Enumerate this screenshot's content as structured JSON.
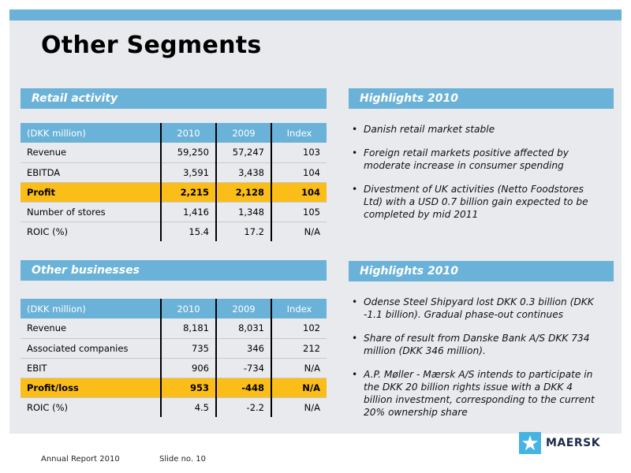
{
  "title": "Other Segments",
  "retail": {
    "header": "Retail activity",
    "table": {
      "columns": [
        "(DKK million)",
        "2010",
        "2009",
        "Index"
      ],
      "rows": [
        [
          "Revenue",
          "59,250",
          "57,247",
          "103"
        ],
        [
          "EBITDA",
          "3,591",
          "3,438",
          "104"
        ],
        [
          "Profit",
          "2,215",
          "2,128",
          "104"
        ],
        [
          "Number of stores",
          "1,416",
          "1,348",
          "105"
        ],
        [
          "ROIC (%)",
          "15.4",
          "17.2",
          "N/A"
        ]
      ]
    }
  },
  "retail_highlights": {
    "header": "Highlights 2010",
    "items": [
      "Danish retail market stable",
      "Foreign retail markets positive affected by moderate increase in consumer spending",
      "Divestment of UK activities (Netto Foodstores Ltd) with a USD 0.7 billion gain expected to be completed by mid 2011"
    ]
  },
  "other": {
    "header": "Other businesses",
    "table": {
      "columns": [
        "(DKK million)",
        "2010",
        "2009",
        "Index"
      ],
      "rows": [
        [
          "Revenue",
          "8,181",
          "8,031",
          "102"
        ],
        [
          "Associated companies",
          "735",
          "346",
          "212"
        ],
        [
          "EBIT",
          "906",
          "-734",
          "N/A"
        ],
        [
          "Profit/loss",
          "953",
          "-448",
          "N/A"
        ],
        [
          "ROIC (%)",
          "4.5",
          "-2.2",
          "N/A"
        ]
      ]
    }
  },
  "other_highlights": {
    "header": "Highlights 2010",
    "items": [
      "Odense Steel Shipyard lost DKK 0.3 billion (DKK -1.1 billion). Gradual phase-out continues",
      "Share of result from Danske Bank A/S DKK 734 million (DKK 346 million).",
      "A.P. Møller - Mærsk A/S intends to participate in the DKK 20 billion rights issue with a DKK 4 billion investment, corresponding to the current 20% ownership share"
    ]
  },
  "footer": {
    "report": "Annual Report 2010",
    "slide": "Slide no. 10"
  },
  "logo": {
    "word": "MAERSK",
    "icon": "star-icon",
    "color": "#45b4e3"
  },
  "colors": {
    "accent_blue": "#6bb2d8",
    "highlight_row": "#fbbd18",
    "slide_background": "#e8eaed"
  }
}
